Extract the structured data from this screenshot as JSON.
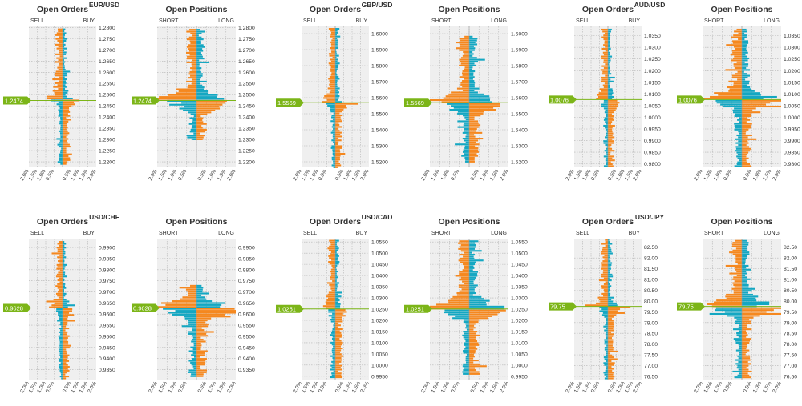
{
  "colors": {
    "orange": "#f5881f",
    "teal": "#14a7c2",
    "price": "#7cb518",
    "plot_bg": "#efefef",
    "grid": "#b5b5b5",
    "text": "#333333"
  },
  "labels": {
    "orders_title": "Open Orders",
    "positions_title": "Open Positions",
    "sell": "SELL",
    "buy": "BUY",
    "short": "SHORT",
    "long": "LONG",
    "x_ticks": [
      "2.0%",
      "1.5%",
      "1.0%",
      "0.5%",
      "0.5%",
      "1.0%",
      "1.5%",
      "2.0%"
    ]
  },
  "chart_data": [
    {
      "type": "bar",
      "pair": "EUR/USD",
      "price": 1.2474,
      "price_label": "1.2474",
      "ylim": [
        1.2175,
        1.2805
      ],
      "yticks": [
        "1.2800",
        "1.2750",
        "1.2700",
        "1.2650",
        "1.2600",
        "1.2550",
        "1.2500",
        "1.2450",
        "1.2400",
        "1.2350",
        "1.2300",
        "1.2250",
        "1.2200"
      ],
      "orders": {
        "range": [
          1.219,
          1.2795
        ],
        "bias": 1.0,
        "scale": 0.9,
        "seed": 11
      },
      "positions": {
        "range": [
          1.23,
          1.2795
        ],
        "bias": 1.0,
        "scale": 1.0,
        "seed": 12
      }
    },
    {
      "type": "bar",
      "pair": "GBP/USD",
      "price": 1.5569,
      "price_label": "1.5569",
      "ylim": [
        1.5165,
        1.6045
      ],
      "yticks": [
        "1.6000",
        "1.5900",
        "1.5800",
        "1.5700",
        "1.5600",
        "1.5500",
        "1.5400",
        "1.5300",
        "1.5200"
      ],
      "orders": {
        "range": [
          1.5165,
          1.603
        ],
        "bias": 0.8,
        "scale": 0.8,
        "seed": 21
      },
      "positions": {
        "range": [
          1.52,
          1.599
        ],
        "bias": 1.0,
        "scale": 1.0,
        "seed": 22
      }
    },
    {
      "type": "bar",
      "pair": "AUD/USD",
      "price": 1.0076,
      "price_label": "1.0076",
      "ylim": [
        0.9785,
        1.039
      ],
      "yticks": [
        "1.0350",
        "1.0300",
        "1.0250",
        "1.0200",
        "1.0150",
        "1.0100",
        "1.0050",
        "1.0000",
        "0.9950",
        "0.9900",
        "0.9850",
        "0.9800"
      ],
      "orders": {
        "range": [
          0.979,
          1.038
        ],
        "bias": 1.0,
        "scale": 0.8,
        "seed": 31
      },
      "positions": {
        "range": [
          0.979,
          1.038
        ],
        "bias": 1.0,
        "scale": 1.0,
        "seed": 32
      }
    },
    {
      "type": "bar",
      "pair": "USD/CHF",
      "price": 0.9628,
      "price_label": "0.9628",
      "ylim": [
        0.9305,
        0.994
      ],
      "yticks": [
        "0.9900",
        "0.9850",
        "0.9800",
        "0.9750",
        "0.9700",
        "0.9650",
        "0.9600",
        "0.9550",
        "0.9500",
        "0.9450",
        "0.9400",
        "0.9350"
      ],
      "orders": {
        "range": [
          0.931,
          0.993
        ],
        "bias": 0.9,
        "scale": 0.8,
        "seed": 41
      },
      "positions": {
        "range": [
          0.932,
          0.973
        ],
        "bias": 1.0,
        "scale": 1.1,
        "seed": 42
      }
    },
    {
      "type": "bar",
      "pair": "USD/CAD",
      "price": 1.0251,
      "price_label": "1.0251",
      "ylim": [
        0.9935,
        1.0565
      ],
      "yticks": [
        "1.0550",
        "1.0500",
        "1.0450",
        "1.0400",
        "1.0350",
        "1.0300",
        "1.0250",
        "1.0200",
        "1.0150",
        "1.0100",
        "1.0050",
        "1.0000",
        "0.9950"
      ],
      "orders": {
        "range": [
          0.9945,
          1.0555
        ],
        "bias": 1.0,
        "scale": 0.9,
        "seed": 51
      },
      "positions": {
        "range": [
          0.996,
          1.0555
        ],
        "bias": 1.0,
        "scale": 1.1,
        "seed": 52
      }
    },
    {
      "type": "bar",
      "pair": "USD/JPY",
      "price": 79.75,
      "price_label": "79.75",
      "ylim": [
        76.35,
        82.9
      ],
      "yticks": [
        "82.50",
        "82.00",
        "81.50",
        "81.00",
        "80.50",
        "80.00",
        "79.50",
        "79.00",
        "78.50",
        "78.00",
        "77.50",
        "77.00",
        "76.50"
      ],
      "orders": {
        "range": [
          76.4,
          82.85
        ],
        "bias": 1.0,
        "scale": 0.8,
        "seed": 61
      },
      "positions": {
        "range": [
          76.45,
          82.85
        ],
        "bias": 1.0,
        "scale": 1.0,
        "seed": 62
      }
    }
  ]
}
